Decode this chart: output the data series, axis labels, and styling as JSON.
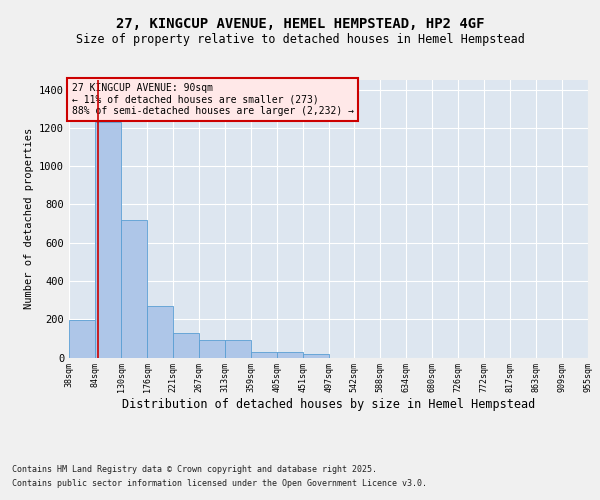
{
  "title1": "27, KINGCUP AVENUE, HEMEL HEMPSTEAD, HP2 4GF",
  "title2": "Size of property relative to detached houses in Hemel Hempstead",
  "xlabel": "Distribution of detached houses by size in Hemel Hempstead",
  "ylabel": "Number of detached properties",
  "annotation_line1": "27 KINGCUP AVENUE: 90sqm",
  "annotation_line2": "← 11% of detached houses are smaller (273)",
  "annotation_line3": "88% of semi-detached houses are larger (2,232) →",
  "property_size_sqm": 90,
  "bin_edges": [
    38,
    84,
    130,
    176,
    221,
    267,
    313,
    359,
    405,
    451,
    497,
    542,
    588,
    634,
    680,
    726,
    772,
    817,
    863,
    909,
    955
  ],
  "bar_heights": [
    197,
    1228,
    718,
    268,
    128,
    93,
    93,
    30,
    30,
    18,
    0,
    0,
    0,
    0,
    0,
    0,
    0,
    0,
    0,
    0
  ],
  "bar_color": "#aec6e8",
  "bar_edge_color": "#5a9fd4",
  "vline_x": 90,
  "vline_color": "#cc0000",
  "ylim": [
    0,
    1450
  ],
  "yticks": [
    0,
    200,
    400,
    600,
    800,
    1000,
    1200,
    1400
  ],
  "background_color": "#dde6f0",
  "grid_color": "#ffffff",
  "annotation_box_color": "#ffe8e8",
  "annotation_border_color": "#cc0000",
  "fig_background": "#f0f0f0",
  "footer1": "Contains HM Land Registry data © Crown copyright and database right 2025.",
  "footer2": "Contains public sector information licensed under the Open Government Licence v3.0."
}
